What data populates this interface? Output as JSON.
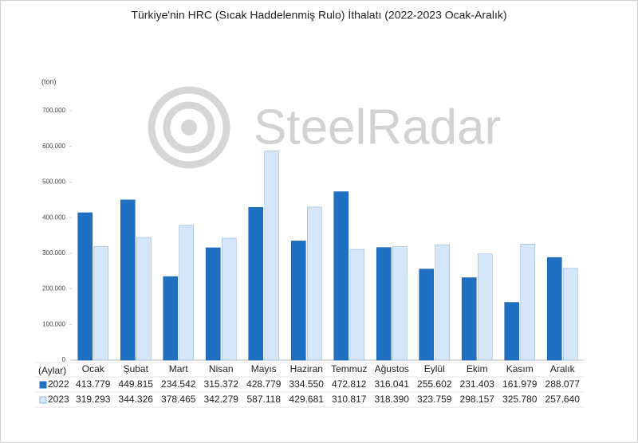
{
  "chart_data": {
    "type": "bar",
    "title": "Türkiye'nin HRC (Sıcak Haddelenmiş Rulo) İthalatı (2022-2023 Ocak-Aralık)",
    "y_label": "(ton)",
    "x_label": "(Aylar)",
    "watermark": "SteelRadar",
    "categories": [
      "Ocak",
      "Şubat",
      "Mart",
      "Nisan",
      "Mayıs",
      "Haziran",
      "Temmuz",
      "Ağustos",
      "Eylül",
      "Ekim",
      "Kasım",
      "Aralık"
    ],
    "series": [
      {
        "name": "2022",
        "color": "#1f6fc2",
        "values": [
          413779,
          449815,
          234542,
          315372,
          428779,
          334550,
          472812,
          316041,
          255602,
          231403,
          161979,
          288077
        ],
        "value_labels": [
          "413.779",
          "449.815",
          "234.542",
          "315.372",
          "428.779",
          "334.550",
          "472.812",
          "316.041",
          "255.602",
          "231.403",
          "161.979",
          "288.077"
        ]
      },
      {
        "name": "2023",
        "color": "#d4e6f8",
        "values": [
          319293,
          344326,
          378465,
          342279,
          587118,
          429681,
          310817,
          318390,
          323759,
          298157,
          325780,
          257640
        ],
        "value_labels": [
          "319.293",
          "344.326",
          "378.465",
          "342.279",
          "587.118",
          "429.681",
          "310.817",
          "318.390",
          "323.759",
          "298.157",
          "325.780",
          "257.640"
        ]
      }
    ],
    "ylim": [
      0,
      700000
    ],
    "yticks": [
      0,
      {
        "value": 100000,
        "label": "100.000"
      },
      {
        "value": 200000,
        "label": "200.000"
      },
      {
        "value": 300000,
        "label": "300.000"
      },
      {
        "value": 400000,
        "label": "400.000"
      },
      {
        "value": 500000,
        "label": "500.000"
      },
      {
        "value": 600000,
        "label": "600.000"
      },
      {
        "value": 700000,
        "label": "700.000"
      }
    ],
    "grid": false
  }
}
